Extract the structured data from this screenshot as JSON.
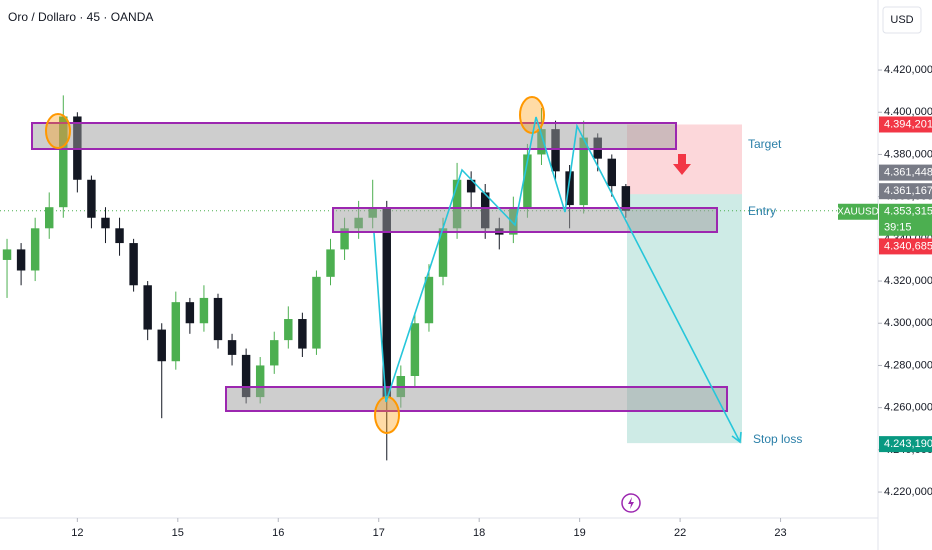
{
  "chart_data": {
    "type": "candlestick",
    "title": "Oro / Dollaro · 45 · OANDA",
    "currency": "USD",
    "symbol": "XAUUSD",
    "countdown": "39:15",
    "annotations": {
      "target": "Target",
      "entry": "Entry",
      "stop_loss": "Stop loss"
    },
    "up_color": "#4caf50",
    "down_color": "#131722",
    "candles": {
      "x": [
        -0.7,
        -0.56,
        -0.42,
        -0.28,
        -0.14,
        0,
        0.14,
        0.28,
        0.42,
        0.56,
        0.7,
        0.84,
        0.98,
        1.12,
        1.26,
        1.4,
        1.54,
        1.68,
        1.82,
        1.96,
        2.1,
        2.24,
        2.38,
        2.52,
        2.66,
        2.8,
        2.94,
        3.08,
        3.22,
        3.36,
        3.5,
        3.64,
        3.78,
        3.92,
        4.06,
        4.2,
        4.34,
        4.48,
        4.62,
        4.76,
        4.9,
        5.04,
        5.18,
        5.32,
        5.46
      ],
      "open": [
        4330,
        4335,
        4325,
        4345,
        4355,
        4398,
        4368,
        4350,
        4345,
        4338,
        4318,
        4297,
        4282,
        4310,
        4300,
        4312,
        4292,
        4285,
        4265,
        4280,
        4292,
        4302,
        4288,
        4322,
        4335,
        4345,
        4350,
        4355,
        4265,
        4275,
        4300,
        4322,
        4345,
        4368,
        4362,
        4345,
        4342,
        4355,
        4380,
        4392,
        4372,
        4356,
        4388,
        4378,
        4365
      ],
      "high": [
        4340,
        4338,
        4350,
        4362,
        4408,
        4400,
        4370,
        4355,
        4350,
        4340,
        4320,
        4300,
        4315,
        4312,
        4318,
        4314,
        4295,
        4288,
        4284,
        4296,
        4308,
        4305,
        4325,
        4340,
        4350,
        4358,
        4368,
        4358,
        4280,
        4305,
        4328,
        4350,
        4376,
        4372,
        4366,
        4350,
        4360,
        4385,
        4402,
        4396,
        4375,
        4396,
        4390,
        4380,
        4366
      ],
      "low": [
        4312,
        4318,
        4320,
        4340,
        4350,
        4362,
        4345,
        4338,
        4332,
        4315,
        4292,
        4255,
        4278,
        4295,
        4296,
        4288,
        4280,
        4262,
        4262,
        4276,
        4288,
        4284,
        4285,
        4318,
        4330,
        4340,
        4345,
        4235,
        4260,
        4270,
        4296,
        4318,
        4340,
        4355,
        4340,
        4335,
        4338,
        4350,
        4375,
        4368,
        4345,
        4352,
        4372,
        4360,
        4350
      ],
      "close": [
        4335,
        4325,
        4345,
        4355,
        4398,
        4368,
        4350,
        4345,
        4338,
        4318,
        4297,
        4282,
        4310,
        4300,
        4312,
        4292,
        4285,
        4265,
        4280,
        4292,
        4302,
        4288,
        4322,
        4335,
        4345,
        4350,
        4355,
        4265,
        4275,
        4300,
        4322,
        4345,
        4368,
        4362,
        4345,
        4342,
        4355,
        4380,
        4392,
        4372,
        4356,
        4388,
        4378,
        4365,
        4353.315
      ]
    },
    "xlim": [
      -0.77,
      7.97
    ],
    "xticks": [
      {
        "value": 0,
        "label": "12"
      },
      {
        "value": 1,
        "label": "15"
      },
      {
        "value": 2,
        "label": "16"
      },
      {
        "value": 3,
        "label": "17"
      },
      {
        "value": 4,
        "label": "18"
      },
      {
        "value": 5,
        "label": "19"
      },
      {
        "value": 6,
        "label": "22"
      },
      {
        "value": 7,
        "label": "23"
      }
    ],
    "ylim": [
      4207.7,
      4453.2
    ],
    "yticks": [
      {
        "value": 4420,
        "label": "4.420,000"
      },
      {
        "value": 4400,
        "label": "4.400,000"
      },
      {
        "value": 4380,
        "label": "4.380,000"
      },
      {
        "value": 4360,
        "label": "4.360,000"
      },
      {
        "value": 4340,
        "label": "4.340,000"
      },
      {
        "value": 4320,
        "label": "4.320,000"
      },
      {
        "value": 4300,
        "label": "4.300,000"
      },
      {
        "value": 4280,
        "label": "4.280,000"
      },
      {
        "value": 4260,
        "label": "4.260,000"
      },
      {
        "value": 4240,
        "label": "4.240,000"
      },
      {
        "value": 4220,
        "label": "4.220,000"
      }
    ],
    "grid": false,
    "price_labels": [
      {
        "value": 4394.201,
        "label": "4.394,201",
        "color": "#f23645"
      },
      {
        "value": 4361.448,
        "label": "4.361,448",
        "color": "#787b86"
      },
      {
        "value": 4361.167,
        "label": "4.361,167",
        "color": "#787b86"
      },
      {
        "value": 4353.315,
        "label": "4.353,315",
        "color": "#4caf50"
      },
      {
        "value": 4340.685,
        "label": "4.340,685",
        "color": "#f23645"
      },
      {
        "value": 4243.19,
        "label": "4.243,190",
        "color": "#089981"
      }
    ]
  }
}
